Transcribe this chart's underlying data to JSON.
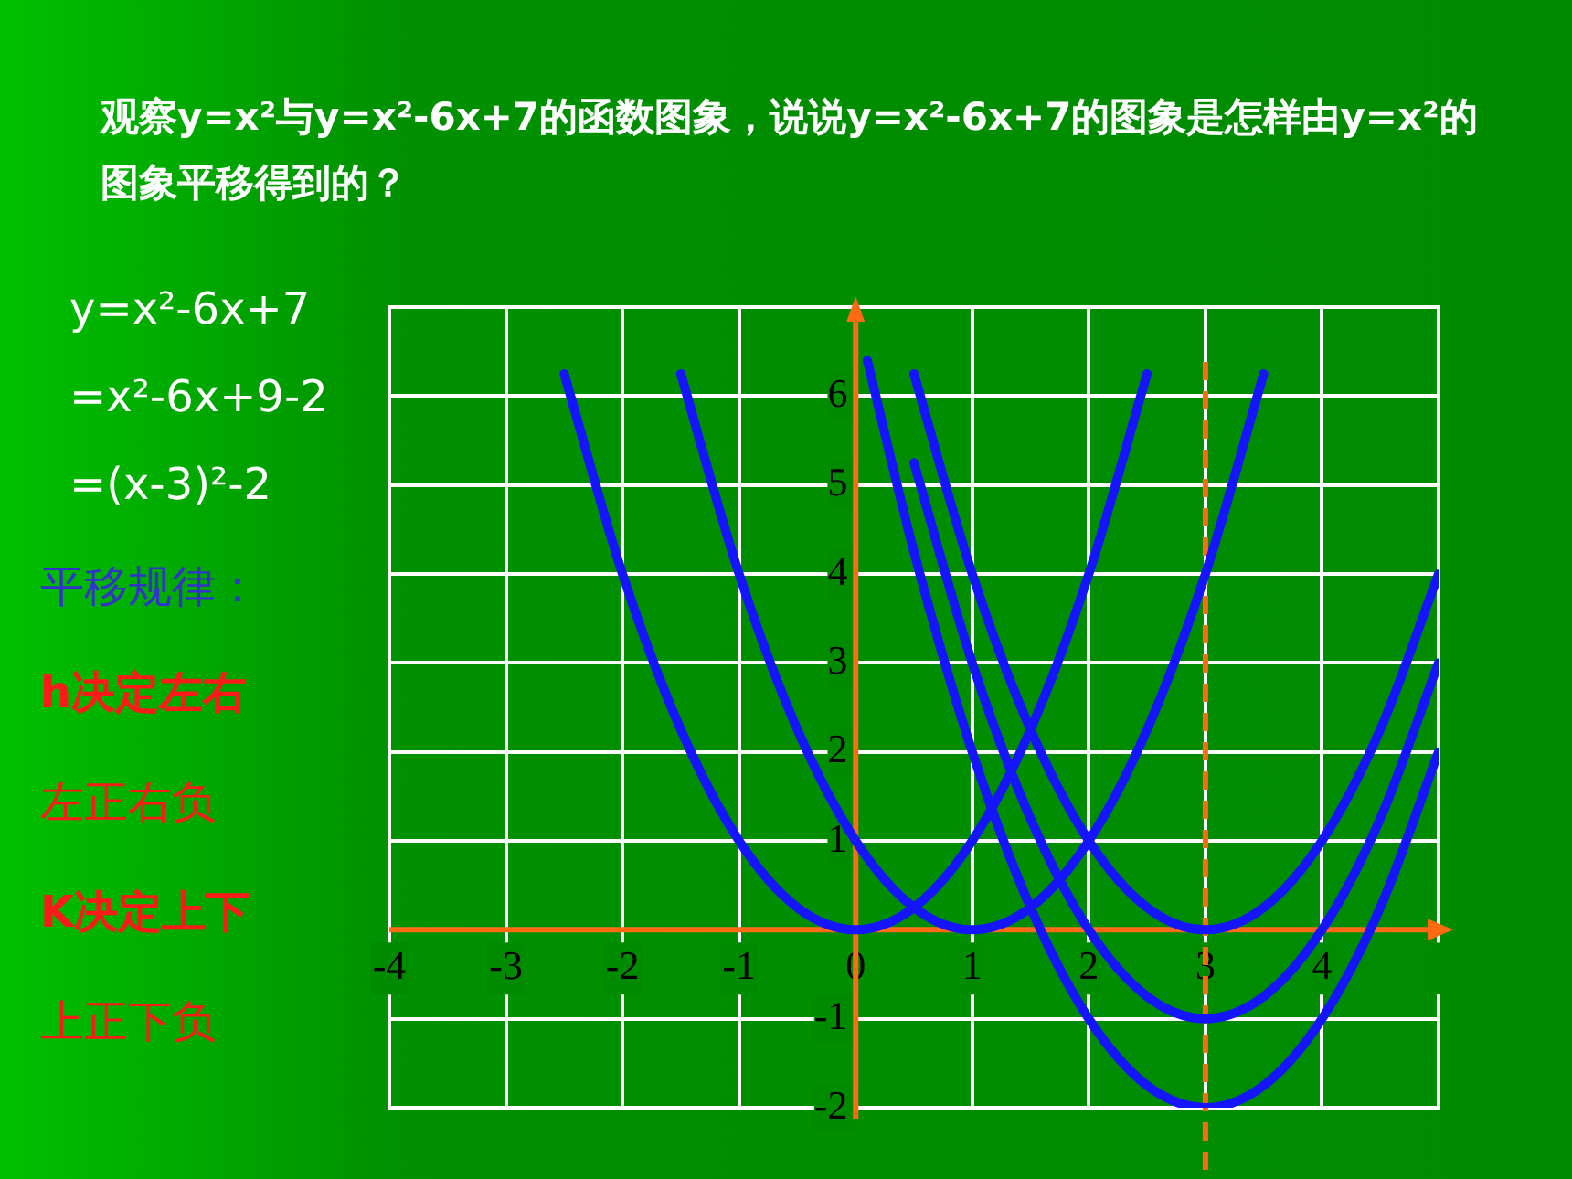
{
  "chart_data": {
    "type": "line",
    "title": "观察y=x²与y=x²-6x+7的函数图象，说说y=x²-6x+7的图象是怎样由y=x²的图象平移得到的？",
    "series": [
      {
        "color": "#1414ff",
        "x": [
          -2.5,
          -2,
          -1.5,
          -1,
          -0.5,
          0,
          0.5,
          1,
          1.5,
          2,
          2.5
        ],
        "values": [
          6.25,
          4,
          2.25,
          1,
          0.25,
          0,
          0.25,
          1,
          2.25,
          4,
          6.25
        ]
      },
      {
        "color": "#1414ff",
        "x": [
          -1.5,
          -1,
          -0.5,
          0,
          0.5,
          1,
          1.5,
          2,
          2.5,
          3,
          3.5
        ],
        "values": [
          6.25,
          4,
          2.25,
          1,
          0.25,
          0,
          0.25,
          1,
          2.25,
          4,
          6.25
        ]
      },
      {
        "color": "#1414ff",
        "x": [
          0.5,
          1,
          1.5,
          2,
          2.5,
          3,
          3.5,
          4,
          4.5,
          5
        ],
        "values": [
          6.25,
          4,
          2.25,
          1,
          0.25,
          0,
          0.25,
          1,
          2.25,
          4
        ]
      },
      {
        "color": "#1414ff",
        "x": [
          0.5,
          1,
          1.5,
          2,
          2.5,
          3,
          3.5,
          4,
          4.5,
          5
        ],
        "values": [
          5.25,
          3,
          1.25,
          0,
          -0.75,
          -1,
          -0.75,
          0,
          1.25,
          3
        ]
      },
      {
        "color": "#1414ff",
        "x": [
          0.1,
          0.5,
          1,
          1.5,
          2,
          2.5,
          3,
          3.5,
          4,
          4.5,
          5
        ],
        "values": [
          6.4,
          4.25,
          2,
          0.25,
          -1,
          -1.75,
          -2,
          -1.75,
          -1,
          0.25,
          2
        ]
      }
    ],
    "xlim": [
      -4,
      5
    ],
    "ylim": [
      -2,
      7
    ],
    "xticks": [
      -4,
      -3,
      -2,
      -1,
      0,
      1,
      2,
      3,
      4,
      {
        "value": 5,
        "label": null
      }
    ],
    "yticks": [
      -2,
      -1,
      {
        "value": 0,
        "label": null
      },
      1,
      2,
      3,
      4,
      5,
      6,
      {
        "value": 7,
        "label": null
      }
    ],
    "grid": true,
    "legend": false,
    "marker": "none",
    "line_style": "solid",
    "ref_lines": [
      {
        "axis": "x",
        "value": 3,
        "label": null,
        "color": "#ff6a13",
        "line_style": "dashed"
      }
    ],
    "annotations": [
      "y=x²-6x+7",
      "=x²-6x+9-2",
      "=(x-3)²-2",
      "平移规律：",
      "h决定左右",
      "左正右负",
      "K决定上下",
      "上正下负"
    ]
  }
}
